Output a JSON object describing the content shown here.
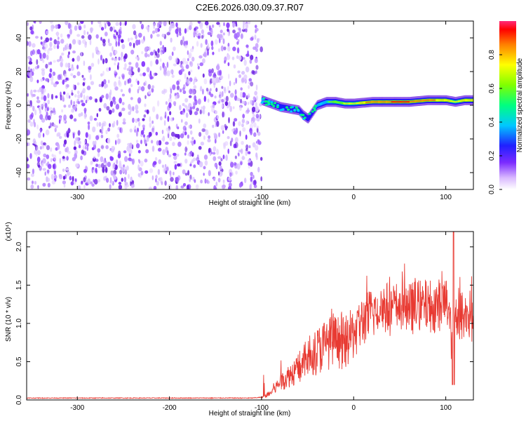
{
  "title": "C2E6.2026.030.09.37.R07",
  "chart_data": [
    {
      "type": "heatmap",
      "xlabel": "Height of straight line (km)",
      "ylabel": "Frequency (Hz)",
      "xlim": [
        -355,
        130
      ],
      "ylim": [
        -50,
        50
      ],
      "xticks": [
        -300,
        -200,
        -100,
        0,
        100
      ],
      "xtick_labels": [
        "-300",
        "-200",
        "-100",
        "0",
        "100"
      ],
      "yticks": [
        -40,
        -20,
        0,
        20,
        40
      ],
      "ytick_labels": [
        "-40",
        "-20",
        "0",
        "20",
        "40"
      ],
      "colorbar": {
        "label": "Normalized spectral amplitude",
        "range": [
          0,
          1
        ],
        "ticks": [
          0.0,
          0.2,
          0.4,
          0.6,
          0.8
        ],
        "tick_labels": [
          "0.0",
          "0.2",
          "0.4",
          "0.6",
          "0.8"
        ]
      },
      "noise_region_x": [
        -355,
        -100
      ],
      "signal_track": {
        "x": [
          -100,
          -90,
          -80,
          -70,
          -60,
          -55,
          -50,
          -45,
          -40,
          -30,
          -20,
          -10,
          0,
          20,
          40,
          60,
          80,
          90,
          100,
          110,
          120,
          130
        ],
        "freq_hz": [
          3,
          1,
          -1,
          -2,
          -3,
          -6,
          -8,
          -4,
          0,
          2,
          2,
          1,
          1,
          2,
          2,
          2,
          3,
          3,
          3,
          2,
          3,
          3
        ],
        "amplitude": [
          0.3,
          0.4,
          0.45,
          0.45,
          0.4,
          0.4,
          0.35,
          0.45,
          0.55,
          0.6,
          0.7,
          0.75,
          0.8,
          0.9,
          0.95,
          0.95,
          0.9,
          0.85,
          0.85,
          0.8,
          0.85,
          0.85
        ]
      }
    },
    {
      "type": "line",
      "xlabel": "Height of straight line (km)",
      "ylabel": "SNR (10 * v/v)",
      "y_multiplier": "(x10⁴)",
      "xlim": [
        -355,
        130
      ],
      "ylim": [
        0,
        2.2
      ],
      "xticks": [
        -300,
        -200,
        -100,
        0,
        100
      ],
      "xtick_labels": [
        "-300",
        "-200",
        "-100",
        "0",
        "100"
      ],
      "yticks": [
        0.0,
        0.5,
        1.0,
        1.5,
        2.0
      ],
      "ytick_labels": [
        "0.0",
        "0.5",
        "1.0",
        "1.5",
        "2.0"
      ],
      "color": "#e83a32",
      "series": [
        {
          "name": "SNR",
          "x": [
            -355,
            -300,
            -200,
            -110,
            -100,
            -90,
            -80,
            -70,
            -60,
            -50,
            -40,
            -30,
            -20,
            -10,
            0,
            10,
            20,
            30,
            40,
            50,
            60,
            70,
            80,
            90,
            100,
            105,
            108,
            110,
            115,
            120,
            125,
            130
          ],
          "y": [
            0.02,
            0.02,
            0.02,
            0.02,
            0.03,
            0.1,
            0.25,
            0.35,
            0.45,
            0.6,
            0.7,
            0.8,
            0.85,
            0.8,
            0.95,
            1.1,
            1.2,
            1.3,
            1.25,
            1.3,
            1.25,
            1.3,
            1.3,
            1.3,
            1.35,
            1.25,
            0.2,
            1.3,
            1.2,
            1.15,
            1.2,
            1.1
          ]
        }
      ]
    }
  ]
}
